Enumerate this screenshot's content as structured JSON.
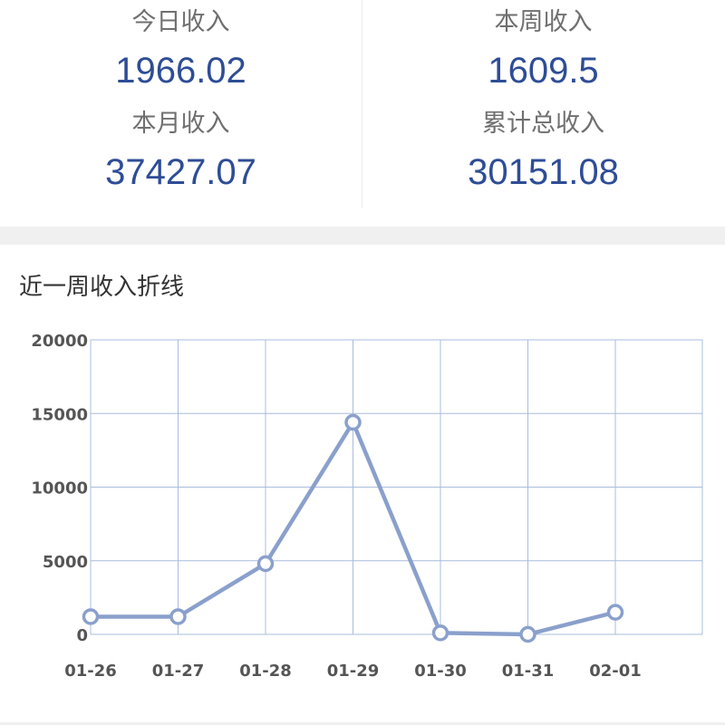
{
  "stats": {
    "today": {
      "label": "今日收入",
      "value": "1966.02"
    },
    "week": {
      "label": "本周收入",
      "value": "1609.5"
    },
    "month": {
      "label": "本月收入",
      "value": "37427.07"
    },
    "total": {
      "label": "累计总收入",
      "value": "30151.08"
    }
  },
  "chart": {
    "title": "近一周收入折线"
  },
  "colors": {
    "value_text": "#2e4d96",
    "line": "#8aa0cc",
    "grid": "#a9bcdc"
  },
  "chart_data": {
    "type": "line",
    "title": "近一周收入折线",
    "categories": [
      "01-26",
      "01-27",
      "01-28",
      "01-29",
      "01-30",
      "01-31",
      "02-01"
    ],
    "series": [
      {
        "values": [
          1200,
          1200,
          4800,
          14400,
          100,
          0,
          1500
        ]
      }
    ],
    "yticks": [
      0,
      5000,
      10000,
      15000,
      20000
    ],
    "ylim": [
      0,
      20000
    ],
    "grid": true,
    "xlabel": "",
    "ylabel": ""
  }
}
